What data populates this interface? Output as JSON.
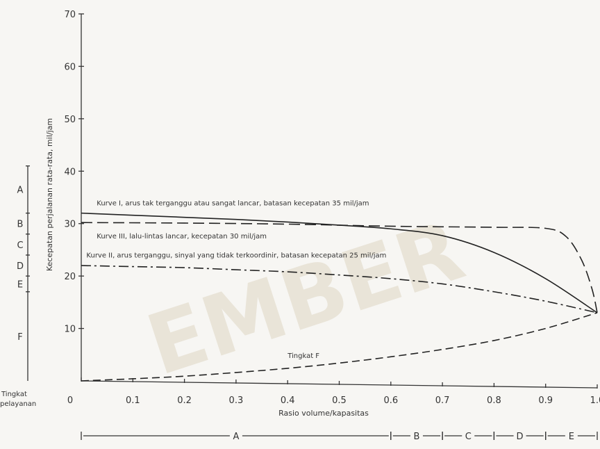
{
  "watermark": {
    "text": "EMBER",
    "color": "#e9e4d8"
  },
  "chart_data": {
    "type": "line",
    "title": "",
    "xlabel": "Rasio volume/kapasitas",
    "ylabel": "Kecepatan perjalanan rata-rata, mil/jam",
    "xlim": [
      0,
      1.0
    ],
    "ylim": [
      0,
      70
    ],
    "x_ticks": [
      {
        "value": 0,
        "label": "0"
      },
      {
        "value": 0.1,
        "label": "0.1"
      },
      {
        "value": 0.2,
        "label": "0.2"
      },
      {
        "value": 0.3,
        "label": "0.3"
      },
      {
        "value": 0.4,
        "label": "0.4"
      },
      {
        "value": 0.5,
        "label": "0.5"
      },
      {
        "value": 0.6,
        "label": "0.6"
      },
      {
        "value": 0.7,
        "label": "0.7"
      },
      {
        "value": 0.8,
        "label": "0.8"
      },
      {
        "value": 0.9,
        "label": "0.9"
      },
      {
        "value": 1.0,
        "label": "1.0"
      }
    ],
    "y_ticks": [
      {
        "value": 10,
        "label": "10"
      },
      {
        "value": 20,
        "label": "20"
      },
      {
        "value": 30,
        "label": "30"
      },
      {
        "value": 40,
        "label": "40"
      },
      {
        "value": 50,
        "label": "50"
      },
      {
        "value": 60,
        "label": "60"
      },
      {
        "value": 70,
        "label": "70"
      }
    ],
    "grid": false,
    "series": [
      {
        "dash": "solid",
        "points": [
          [
            0,
            32
          ],
          [
            0.1,
            31.6
          ],
          [
            0.2,
            31.2
          ],
          [
            0.3,
            30.8
          ],
          [
            0.4,
            30.3
          ],
          [
            0.5,
            29.7
          ],
          [
            0.6,
            29.0
          ],
          [
            0.7,
            27.7
          ],
          [
            0.8,
            24.5
          ],
          [
            0.9,
            19.5
          ],
          [
            1.0,
            13
          ]
        ]
      },
      {
        "dash": "long-dash",
        "points": [
          [
            0,
            30.2
          ],
          [
            0.2,
            30.1
          ],
          [
            0.4,
            29.9
          ],
          [
            0.6,
            29.5
          ],
          [
            0.8,
            29.3
          ],
          [
            0.9,
            29.1
          ],
          [
            0.94,
            27.5
          ],
          [
            0.97,
            23
          ],
          [
            0.99,
            17.5
          ],
          [
            1.0,
            13
          ]
        ]
      },
      {
        "dash": "dash-dot",
        "points": [
          [
            0,
            22
          ],
          [
            0.1,
            21.8
          ],
          [
            0.2,
            21.6
          ],
          [
            0.3,
            21.2
          ],
          [
            0.4,
            20.8
          ],
          [
            0.5,
            20.2
          ],
          [
            0.6,
            19.5
          ],
          [
            0.7,
            18.5
          ],
          [
            0.8,
            17.0
          ],
          [
            0.9,
            15.2
          ],
          [
            1.0,
            13
          ]
        ]
      },
      {
        "dash": "dashed",
        "points": [
          [
            0,
            0
          ],
          [
            0.1,
            0.4
          ],
          [
            0.2,
            0.9
          ],
          [
            0.3,
            1.6
          ],
          [
            0.4,
            2.4
          ],
          [
            0.5,
            3.4
          ],
          [
            0.6,
            4.6
          ],
          [
            0.7,
            6.0
          ],
          [
            0.8,
            7.7
          ],
          [
            0.9,
            10.0
          ],
          [
            1.0,
            13
          ]
        ]
      }
    ],
    "annotations": [
      {
        "text": "Kurve I, arus tak terganggu atau sangat lancar, batasan kecepatan 35 mil/jam",
        "x": 0.03,
        "y": 33.5
      },
      {
        "text": "Kurve III, lalu-lintas lancar, kecepatan 30 mil/jam",
        "x": 0.03,
        "y": 27.2
      },
      {
        "text": "Kurve II, arus terganggu, sinyal yang tidak terkoordinir, batasan kecepatan 25 mil/jam",
        "x": 0.01,
        "y": 23.5
      },
      {
        "text": "Tingkat F",
        "x": 0.4,
        "y": 4.4
      }
    ],
    "y_level_bands": [
      {
        "label": "A",
        "from": 32,
        "to": 41
      },
      {
        "label": "B",
        "from": 28,
        "to": 32
      },
      {
        "label": "C",
        "from": 24,
        "to": 28
      },
      {
        "label": "D",
        "from": 20,
        "to": 24
      },
      {
        "label": "E",
        "from": 17,
        "to": 20
      },
      {
        "label": "F",
        "from": 0,
        "to": 17
      }
    ],
    "x_level_bands": [
      {
        "label": "A",
        "from": 0,
        "to": 0.6
      },
      {
        "label": "B",
        "from": 0.6,
        "to": 0.7
      },
      {
        "label": "C",
        "from": 0.7,
        "to": 0.8
      },
      {
        "label": "D",
        "from": 0.8,
        "to": 0.9
      },
      {
        "label": "E",
        "from": 0.9,
        "to": 1.0
      }
    ],
    "level_axis_label": [
      "Tingkat",
      "pelayanan"
    ]
  }
}
